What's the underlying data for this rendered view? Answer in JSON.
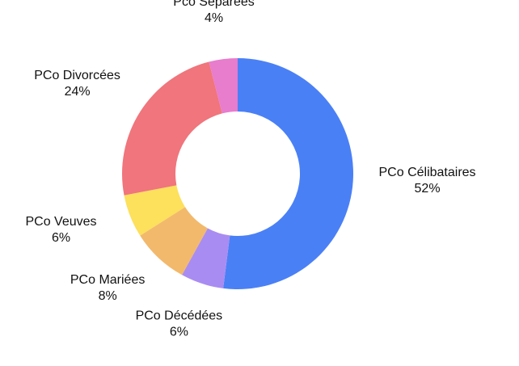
{
  "chart_data": {
    "type": "donut",
    "categories": [
      "PCo Célibataires",
      "PCo Décédées",
      "PCo Mariées",
      "PCo Veuves",
      "PCo Divorcées",
      "Pco Séparées"
    ],
    "values": [
      52,
      6,
      8,
      6,
      24,
      4
    ],
    "value_labels": [
      "52%",
      "6%",
      "8%",
      "6%",
      "24%",
      "4%"
    ],
    "colors": [
      "#4a80f6",
      "#a98cf1",
      "#f2b96c",
      "#fde05c",
      "#f0757c",
      "#e87ccd"
    ]
  }
}
